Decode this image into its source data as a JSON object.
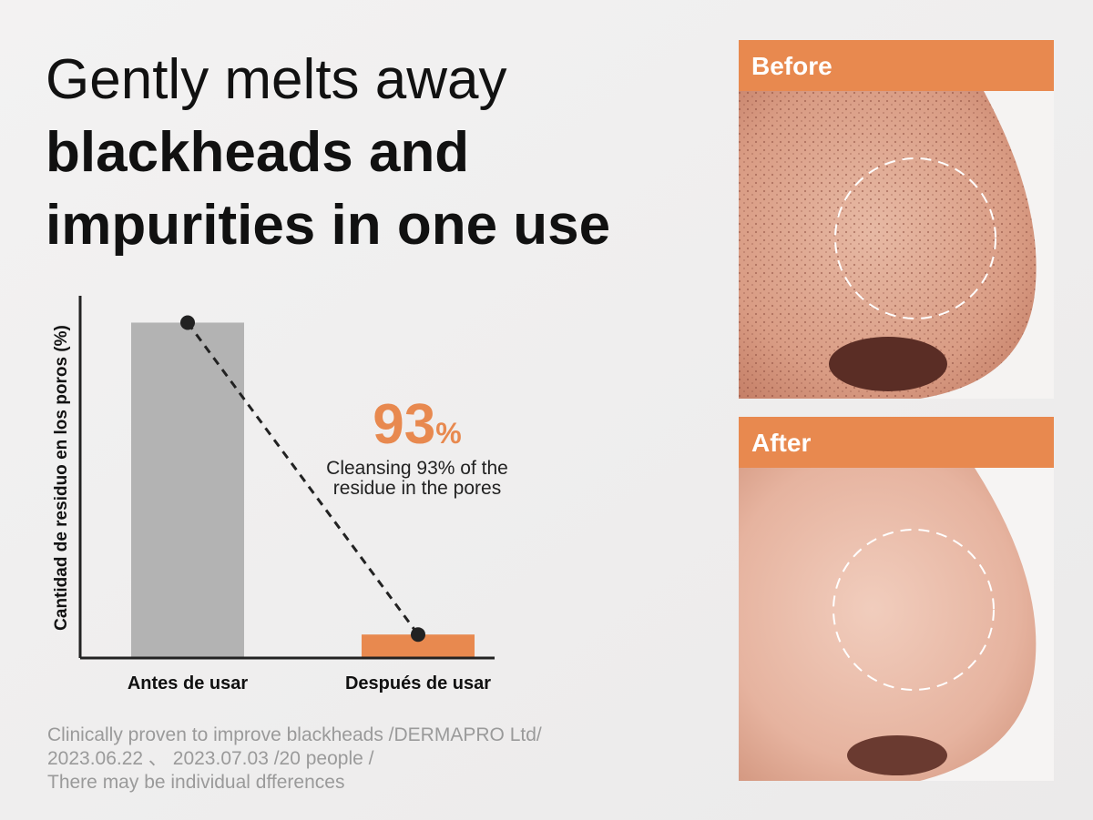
{
  "headline": {
    "line1": "Gently melts away",
    "line2": "blackheads and",
    "line3": "impurities in one use"
  },
  "chart_data": {
    "type": "bar",
    "y_label": "Cantidad de residuo en los poros (%)",
    "categories": [
      "Antes de usar",
      "Después de usar"
    ],
    "values": [
      100,
      7
    ],
    "colors": [
      "#b3b3b3",
      "#e8894f"
    ],
    "ylim": [
      0,
      108
    ],
    "connector_color": "#222222",
    "annotation": {
      "number": "93",
      "unit": "%",
      "lines": [
        "Cleansing 93% of the",
        "residue in the pores"
      ]
    }
  },
  "footnote": [
    "Clinically proven to improve blackheads /DERMAPRO Ltd/",
    "2023.06.22 、 2023.07.03 /20 people /",
    "There may be individual dfferences"
  ],
  "photos": [
    {
      "label": "Before"
    },
    {
      "label": "After"
    }
  ]
}
